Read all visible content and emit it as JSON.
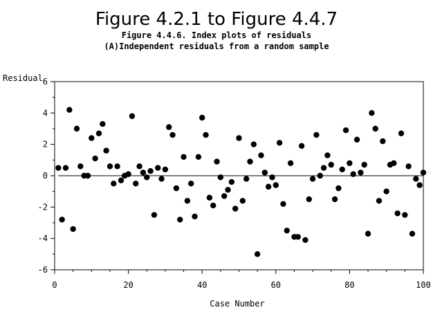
{
  "chart_data": {
    "type": "scatter",
    "title": "Figure 4.2.1 to Figure 4.4.7",
    "subtitle_1": "Figure 4.4.6. Index plots of residuals",
    "subtitle_2": "(A)Independent residuals from a random sample",
    "xlabel": "Case Number",
    "ylabel": "Residual",
    "xlim": [
      0,
      100
    ],
    "ylim": [
      -6,
      6
    ],
    "x_ticks": [
      0,
      20,
      40,
      60,
      80,
      100
    ],
    "y_ticks": [
      -6,
      -4,
      -2,
      0,
      2,
      4,
      6
    ],
    "reference_line_y": 0,
    "grid": false,
    "x": [
      1,
      2,
      3,
      4,
      5,
      6,
      7,
      8,
      9,
      10,
      11,
      12,
      13,
      14,
      15,
      16,
      17,
      18,
      19,
      20,
      21,
      22,
      23,
      24,
      25,
      26,
      27,
      28,
      29,
      30,
      31,
      32,
      33,
      34,
      35,
      36,
      37,
      38,
      39,
      40,
      41,
      42,
      43,
      44,
      45,
      46,
      47,
      48,
      49,
      50,
      51,
      52,
      53,
      54,
      55,
      56,
      57,
      58,
      59,
      60,
      61,
      62,
      63,
      64,
      65,
      66,
      67,
      68,
      69,
      70,
      71,
      72,
      73,
      74,
      75,
      76,
      77,
      78,
      79,
      80,
      81,
      82,
      83,
      84,
      85,
      86,
      87,
      88,
      89,
      90,
      91,
      92,
      93,
      94,
      95,
      96,
      97,
      98,
      99,
      100
    ],
    "y": [
      0.5,
      -2.8,
      0.5,
      4.2,
      -3.4,
      3.0,
      0.6,
      0.0,
      0.0,
      2.4,
      1.1,
      2.7,
      3.3,
      1.6,
      0.6,
      -0.5,
      0.6,
      -0.3,
      0.0,
      0.1,
      3.8,
      -0.5,
      0.6,
      0.2,
      -0.1,
      0.3,
      -2.5,
      0.5,
      -0.2,
      0.4,
      3.1,
      2.6,
      -0.8,
      -2.8,
      1.2,
      -1.6,
      -0.5,
      -2.6,
      1.2,
      3.7,
      2.6,
      -1.4,
      -1.9,
      0.9,
      -0.1,
      -1.3,
      -0.9,
      -0.4,
      -2.1,
      2.4,
      -1.6,
      -0.2,
      0.9,
      2.0,
      -5.0,
      1.3,
      0.2,
      -0.7,
      -0.1,
      -0.6,
      2.1,
      -1.8,
      -3.5,
      0.8,
      -3.9,
      -3.9,
      1.9,
      -4.1,
      -1.5,
      -0.2,
      2.6,
      0.0,
      0.5,
      1.3,
      0.7,
      -1.5,
      -0.8,
      0.4,
      2.9,
      0.8,
      0.1,
      2.3,
      0.2,
      0.7,
      -3.7,
      4.0,
      3.0,
      -1.6,
      2.2,
      -1.0,
      0.7,
      0.8,
      -2.4,
      2.7,
      -2.5,
      0.6,
      -3.7,
      -0.2,
      -0.6,
      0.2
    ]
  }
}
